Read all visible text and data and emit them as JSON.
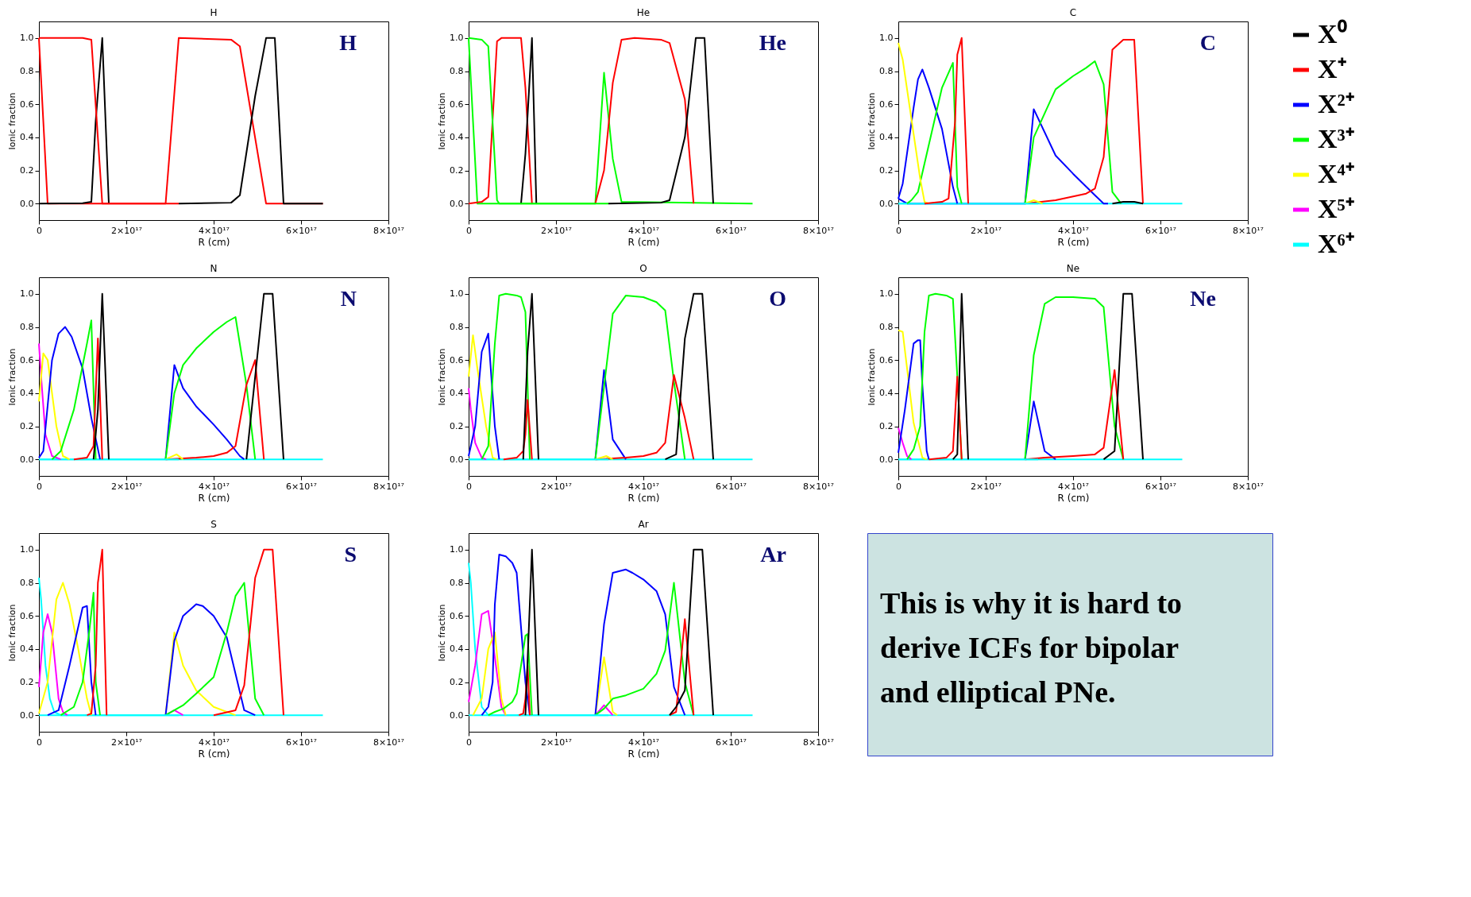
{
  "chart_data": [
    {
      "type": "line",
      "title": "H",
      "annotations": [
        "H"
      ],
      "legend": "right",
      "xlabel": "R (cm)",
      "ylabel": "Ionic fraction",
      "xlim": [
        0,
        8e+17
      ],
      "xticks": [
        {
          "value": 0,
          "label": "0"
        },
        {
          "value": 2e+17,
          "label": "2×10¹⁷"
        },
        {
          "value": 4e+17,
          "label": "4×10¹⁷"
        },
        {
          "value": 6e+17,
          "label": "6×10¹⁷"
        },
        {
          "value": 8e+17,
          "label": "8×10¹⁷"
        }
      ],
      "ylim": [
        -0.1,
        1.1
      ],
      "yticks": [
        {
          "value": 0,
          "label": "0.0"
        },
        {
          "value": 0.2,
          "label": "0.2"
        },
        {
          "value": 0.4,
          "label": "0.4"
        },
        {
          "value": 0.6,
          "label": "0.6"
        },
        {
          "value": 0.8,
          "label": "0.8"
        },
        {
          "value": 1,
          "label": "1.0"
        }
      ],
      "series": [
        {
          "color": "#ff0000",
          "x": [
            0,
            2e+16,
            2.9e+17,
            3.2e+17,
            4.4e+17,
            4.6e+17,
            5.2e+17,
            6.5e+17
          ],
          "values": [
            1,
            0,
            0,
            1,
            0.99,
            0.95,
            0,
            0
          ]
        },
        {
          "color": "#000000",
          "x": [
            3.2e+17,
            4.4e+17,
            4.6e+17,
            4.95e+17,
            5.2e+17,
            5.4e+17,
            5.6e+17,
            6.5e+17
          ],
          "values": [
            0,
            0.005,
            0.05,
            0.65,
            1,
            1,
            0,
            0
          ]
        },
        {
          "name": "X⁰",
          "color": "#000000",
          "x": [
            0,
            1e+17,
            1.2e+17,
            1.3e+17,
            1.45e+17,
            1.6e+17
          ],
          "values": [
            0,
            0.002,
            0.01,
            0.5,
            1,
            0
          ]
        },
        {
          "name": "X⁺",
          "color": "#ff0000",
          "x": [
            0,
            1e+17,
            1.2e+17,
            1.45e+17,
            3.2e+17
          ],
          "values": [
            1,
            1,
            0.99,
            0,
            0
          ]
        }
      ]
    },
    {
      "type": "line",
      "title": "He",
      "annotations": [
        "He"
      ],
      "xlabel": "R (cm)",
      "ylabel": "Ionic fraction",
      "xlim": [
        0,
        8e+17
      ],
      "xticks": [
        {
          "value": 0,
          "label": "0"
        },
        {
          "value": 2e+17,
          "label": "2×10¹⁷"
        },
        {
          "value": 4e+17,
          "label": "4×10¹⁷"
        },
        {
          "value": 6e+17,
          "label": "6×10¹⁷"
        },
        {
          "value": 8e+17,
          "label": "8×10¹⁷"
        }
      ],
      "ylim": [
        -0.1,
        1.1
      ],
      "yticks": [
        {
          "value": 0,
          "label": "0.0"
        },
        {
          "value": 0.2,
          "label": "0.2"
        },
        {
          "value": 0.4,
          "label": "0.4"
        },
        {
          "value": 0.6,
          "label": "0.6"
        },
        {
          "value": 0.8,
          "label": "0.8"
        },
        {
          "value": 1,
          "label": "1.0"
        }
      ],
      "series": [
        {
          "color": "#00ff00",
          "x": [
            0,
            2e+16,
            2.9e+17,
            3.1e+17,
            3.3e+17,
            3.5e+17,
            6.5e+17
          ],
          "values": [
            1,
            0,
            0,
            0.79,
            0.27,
            0.01,
            0
          ]
        },
        {
          "color": "#ff0000",
          "x": [
            2.9e+17,
            3.1e+17,
            3.3e+17,
            3.5e+17,
            3.8e+17,
            4.4e+17,
            4.6e+17,
            4.95e+17,
            5.15e+17
          ],
          "values": [
            0,
            0.2,
            0.73,
            0.99,
            1,
            0.99,
            0.97,
            0.63,
            0
          ]
        },
        {
          "color": "#000000",
          "x": [
            3.2e+17,
            4.4e+17,
            4.6e+17,
            4.95e+17,
            5.2e+17,
            5.4e+17,
            5.6e+17
          ],
          "values": [
            0,
            0.005,
            0.02,
            0.4,
            1,
            1,
            0
          ]
        },
        {
          "color": "#ff0000",
          "x": [
            0,
            3e+16,
            4.5e+16,
            6.5e+16,
            7.5e+16,
            1.2e+17,
            1.3e+17,
            1.45e+17
          ],
          "values": [
            0,
            0.01,
            0.04,
            0.98,
            1,
            1,
            0.7,
            0
          ]
        },
        {
          "color": "#000000",
          "x": [
            1.2e+17,
            1.3e+17,
            1.45e+17,
            1.55e+17
          ],
          "values": [
            0,
            0.3,
            1,
            0
          ]
        },
        {
          "color": "#00ff00",
          "x": [
            0,
            3e+16,
            4.5e+16,
            6.5e+16,
            7e+16,
            3.2e+17
          ],
          "values": [
            1,
            0.99,
            0.95,
            0.02,
            0,
            0
          ]
        }
      ]
    },
    {
      "type": "line",
      "title": "C",
      "annotations": [
        "C"
      ],
      "legend": "right",
      "xlabel": "R (cm)",
      "ylabel": "Ionic fraction",
      "xlim": [
        0,
        8e+17
      ],
      "xticks": [
        {
          "value": 0,
          "label": "0"
        },
        {
          "value": 2e+17,
          "label": "2×10¹⁷"
        },
        {
          "value": 4e+17,
          "label": "4×10¹⁷"
        },
        {
          "value": 6e+17,
          "label": "6×10¹⁷"
        },
        {
          "value": 8e+17,
          "label": "8×10¹⁷"
        }
      ],
      "ylim": [
        -0.1,
        1.1
      ],
      "yticks": [
        {
          "value": 0,
          "label": "0.0"
        },
        {
          "value": 0.2,
          "label": "0.2"
        },
        {
          "value": 0.4,
          "label": "0.4"
        },
        {
          "value": 0.6,
          "label": "0.6"
        },
        {
          "value": 0.8,
          "label": "0.8"
        },
        {
          "value": 1,
          "label": "1.0"
        }
      ],
      "series": [
        {
          "color": "#00ffff",
          "x": [
            0,
            6.5e+17
          ],
          "values": [
            0,
            0
          ]
        },
        {
          "color": "#0000ff",
          "x": [
            0,
            2e+16,
            2.9e+17,
            3.1e+17,
            3.6e+17,
            4e+17,
            4.5e+17,
            4.7e+17,
            4.8e+17
          ],
          "values": [
            0.03,
            0,
            0,
            0.57,
            0.29,
            0.18,
            0.05,
            0,
            0
          ]
        },
        {
          "color": "#00ff00",
          "x": [
            2.9e+17,
            3.1e+17,
            3.6e+17,
            4e+17,
            4.3e+17,
            4.5e+17,
            4.7e+17,
            4.9e+17,
            5.1e+17
          ],
          "values": [
            0,
            0.4,
            0.69,
            0.77,
            0.82,
            0.86,
            0.72,
            0.07,
            0
          ]
        },
        {
          "color": "#ff0000",
          "x": [
            2.9e+17,
            3.6e+17,
            4.3e+17,
            4.5e+17,
            4.7e+17,
            4.9e+17,
            5.15e+17,
            5.4e+17,
            5.6e+17
          ],
          "values": [
            0,
            0.02,
            0.06,
            0.09,
            0.28,
            0.93,
            0.99,
            0.99,
            0
          ]
        },
        {
          "color": "#ffff00",
          "x": [
            2.9e+17,
            3.1e+17,
            3.3e+17
          ],
          "values": [
            0,
            0.02,
            0
          ]
        },
        {
          "color": "#000000",
          "x": [
            4.9e+17,
            5.15e+17,
            5.4e+17,
            5.6e+17
          ],
          "values": [
            0,
            0.01,
            0.01,
            0
          ]
        },
        {
          "color": "#00ffff",
          "x": [
            0,
            3.2e+17
          ],
          "values": [
            0,
            0
          ]
        },
        {
          "name": "X²⁺",
          "color": "#0000ff",
          "x": [
            0,
            1e+16,
            3.5e+16,
            4.5e+16,
            5.5e+16,
            7e+16,
            1e+17,
            1.25e+17,
            1.35e+17
          ],
          "values": [
            0.03,
            0.12,
            0.58,
            0.75,
            0.81,
            0.7,
            0.45,
            0.1,
            0
          ]
        },
        {
          "name": "X³⁺",
          "color": "#00ff00",
          "x": [
            2e+16,
            3e+16,
            4.5e+16,
            1e+17,
            1.25e+17,
            1.35e+17,
            1.45e+17
          ],
          "values": [
            0,
            0.02,
            0.07,
            0.7,
            0.85,
            0.1,
            0
          ]
        },
        {
          "name": "X⁴⁺",
          "color": "#ffff00",
          "x": [
            0,
            1e+16,
            5e+16,
            6e+16,
            7e+16
          ],
          "values": [
            0.97,
            0.87,
            0.15,
            0.01,
            0
          ]
        },
        {
          "color": "#ff0000",
          "x": [
            6e+16,
            1e+17,
            1.15e+17,
            1.3e+17,
            1.35e+17,
            1.45e+17,
            1.6e+17
          ],
          "values": [
            0,
            0.01,
            0.03,
            0.5,
            0.9,
            1,
            0
          ]
        }
      ]
    },
    {
      "type": "line",
      "title": "N",
      "annotations": [
        "N"
      ],
      "legend": "right",
      "xlabel": "R (cm)",
      "ylabel": "Ionic fraction",
      "xlim": [
        0,
        8e+17
      ],
      "xticks": [
        {
          "value": 0,
          "label": "0"
        },
        {
          "value": 2e+17,
          "label": "2×10¹⁷"
        },
        {
          "value": 4e+17,
          "label": "4×10¹⁷"
        },
        {
          "value": 6e+17,
          "label": "6×10¹⁷"
        },
        {
          "value": 8e+17,
          "label": "8×10¹⁷"
        }
      ],
      "ylim": [
        -0.1,
        1.1
      ],
      "yticks": [
        {
          "value": 0,
          "label": "0.0"
        },
        {
          "value": 0.2,
          "label": "0.2"
        },
        {
          "value": 0.4,
          "label": "0.4"
        },
        {
          "value": 0.6,
          "label": "0.6"
        },
        {
          "value": 0.8,
          "label": "0.8"
        },
        {
          "value": 1,
          "label": "1.0"
        }
      ],
      "series": [
        {
          "color": "#00ffff",
          "x": [
            0,
            6.5e+17
          ],
          "values": [
            0,
            0
          ]
        },
        {
          "color": "#0000ff",
          "x": [
            2.9e+17,
            3.1e+17,
            3.3e+17,
            3.6e+17,
            4e+17,
            4.3e+17,
            4.6e+17,
            4.7e+17
          ],
          "values": [
            0,
            0.57,
            0.43,
            0.32,
            0.21,
            0.12,
            0.02,
            0
          ]
        },
        {
          "color": "#00ff00",
          "x": [
            2.9e+17,
            3.1e+17,
            3.3e+17,
            3.6e+17,
            4e+17,
            4.3e+17,
            4.5e+17,
            4.75e+17,
            4.95e+17
          ],
          "values": [
            0,
            0.4,
            0.57,
            0.67,
            0.77,
            0.83,
            0.86,
            0.45,
            0
          ]
        },
        {
          "color": "#ff0000",
          "x": [
            2.9e+17,
            3.6e+17,
            4e+17,
            4.3e+17,
            4.5e+17,
            4.75e+17,
            4.95e+17,
            5.15e+17
          ],
          "values": [
            0,
            0.01,
            0.02,
            0.04,
            0.08,
            0.45,
            0.6,
            0
          ]
        },
        {
          "color": "#ffff00",
          "x": [
            2.9e+17,
            3.15e+17,
            3.3e+17
          ],
          "values": [
            0,
            0.03,
            0
          ]
        },
        {
          "color": "#000000",
          "x": [
            4.75e+17,
            5.15e+17,
            5.35e+17,
            5.6e+17
          ],
          "values": [
            0,
            1,
            1,
            0
          ]
        },
        {
          "color": "#00ffff",
          "x": [
            0,
            3.2e+17
          ],
          "values": [
            0,
            0
          ]
        },
        {
          "name": "X⁵⁺",
          "color": "#ff00ff",
          "x": [
            0,
            5000000000000000.0,
            1.5e+16,
            3e+16,
            5e+16
          ],
          "values": [
            0.7,
            0.5,
            0.15,
            0.02,
            0
          ]
        },
        {
          "color": "#ffff00",
          "x": [
            0,
            1e+16,
            2e+16,
            4e+16,
            5.5e+16,
            7e+16
          ],
          "values": [
            0.35,
            0.64,
            0.6,
            0.2,
            0.02,
            0
          ]
        },
        {
          "color": "#0000ff",
          "x": [
            0,
            1e+16,
            3e+16,
            4.5e+16,
            6e+16,
            7.5e+16,
            1e+17,
            1.2e+17,
            1.4e+17
          ],
          "values": [
            0.01,
            0.05,
            0.6,
            0.76,
            0.8,
            0.74,
            0.55,
            0.25,
            0
          ]
        },
        {
          "color": "#00ff00",
          "x": [
            3e+16,
            5e+16,
            8e+16,
            1.1e+17,
            1.2e+17,
            1.3e+17
          ],
          "values": [
            0,
            0.05,
            0.3,
            0.7,
            0.84,
            0
          ]
        },
        {
          "color": "#ff0000",
          "x": [
            8e+16,
            1.1e+17,
            1.25e+17,
            1.35e+17,
            1.45e+17
          ],
          "values": [
            0,
            0.01,
            0.08,
            0.73,
            0
          ]
        },
        {
          "color": "#000000",
          "x": [
            1.25e+17,
            1.35e+17,
            1.45e+17,
            1.6e+17
          ],
          "values": [
            0,
            0.3,
            1,
            0
          ]
        }
      ]
    },
    {
      "type": "line",
      "title": "O",
      "annotations": [
        "O"
      ],
      "xlabel": "R (cm)",
      "ylabel": "Ionic fraction",
      "xlim": [
        0,
        8e+17
      ],
      "xticks": [
        {
          "value": 0,
          "label": "0"
        },
        {
          "value": 2e+17,
          "label": "2×10¹⁷"
        },
        {
          "value": 4e+17,
          "label": "4×10¹⁷"
        },
        {
          "value": 6e+17,
          "label": "6×10¹⁷"
        },
        {
          "value": 8e+17,
          "label": "8×10¹⁷"
        }
      ],
      "ylim": [
        -0.1,
        1.1
      ],
      "yticks": [
        {
          "value": 0,
          "label": "0.0"
        },
        {
          "value": 0.2,
          "label": "0.2"
        },
        {
          "value": 0.4,
          "label": "0.4"
        },
        {
          "value": 0.6,
          "label": "0.6"
        },
        {
          "value": 0.8,
          "label": "0.8"
        },
        {
          "value": 1,
          "label": "1.0"
        }
      ],
      "series": [
        {
          "color": "#00ffff",
          "x": [
            0,
            6.5e+17
          ],
          "values": [
            0,
            0
          ]
        },
        {
          "color": "#0000ff",
          "x": [
            2.9e+17,
            3.1e+17,
            3.3e+17,
            3.6e+17
          ],
          "values": [
            0,
            0.54,
            0.12,
            0
          ]
        },
        {
          "color": "#00ff00",
          "x": [
            2.9e+17,
            3.3e+17,
            3.6e+17,
            4e+17,
            4.3e+17,
            4.5e+17,
            4.7e+17,
            4.95e+17
          ],
          "values": [
            0,
            0.88,
            0.99,
            0.98,
            0.95,
            0.9,
            0.47,
            0
          ]
        },
        {
          "color": "#ff0000",
          "x": [
            2.9e+17,
            3.6e+17,
            4e+17,
            4.3e+17,
            4.5e+17,
            4.7e+17,
            4.95e+17,
            5.15e+17
          ],
          "values": [
            0,
            0.01,
            0.02,
            0.04,
            0.1,
            0.51,
            0.25,
            0
          ]
        },
        {
          "color": "#ffff00",
          "x": [
            2.9e+17,
            3.15e+17,
            3.3e+17
          ],
          "values": [
            0,
            0.02,
            0
          ]
        },
        {
          "color": "#000000",
          "x": [
            4.5e+17,
            4.75e+17,
            4.95e+17,
            5.15e+17,
            5.35e+17,
            5.6e+17
          ],
          "values": [
            0,
            0.03,
            0.73,
            1,
            1,
            0
          ]
        },
        {
          "color": "#00ffff",
          "x": [
            0,
            3.2e+17
          ],
          "values": [
            0,
            0
          ]
        },
        {
          "color": "#ff00ff",
          "x": [
            0,
            5000000000000000.0,
            1.5e+16,
            3e+16,
            4e+16
          ],
          "values": [
            0.43,
            0.3,
            0.1,
            0.01,
            0
          ]
        },
        {
          "color": "#ffff00",
          "x": [
            0,
            1e+16,
            2e+16,
            4e+16,
            5.5e+16,
            6.5e+16
          ],
          "values": [
            0.5,
            0.75,
            0.55,
            0.2,
            0.01,
            0
          ]
        },
        {
          "color": "#0000ff",
          "x": [
            0,
            1.5e+16,
            3e+16,
            4.5e+16,
            6e+16,
            7e+16
          ],
          "values": [
            0.02,
            0.2,
            0.65,
            0.76,
            0.2,
            0
          ]
        },
        {
          "color": "#00ff00",
          "x": [
            3e+16,
            4.5e+16,
            6e+16,
            7e+16,
            8.5e+16,
            1.1e+17,
            1.2e+17,
            1.3e+17,
            1.4e+17
          ],
          "values": [
            0,
            0.08,
            0.7,
            0.99,
            1,
            0.99,
            0.98,
            0.89,
            0
          ]
        },
        {
          "color": "#ff0000",
          "x": [
            8e+16,
            1.1e+17,
            1.25e+17,
            1.3e+17,
            1.35e+17,
            1.45e+17
          ],
          "values": [
            0,
            0.01,
            0.05,
            0.15,
            0.36,
            0
          ]
        },
        {
          "color": "#000000",
          "x": [
            1.25e+17,
            1.35e+17,
            1.45e+17,
            1.6e+17
          ],
          "values": [
            0,
            0.65,
            1,
            0
          ]
        }
      ]
    },
    {
      "type": "line",
      "title": "Ne",
      "annotations": [
        "Ne"
      ],
      "xlabel": "R (cm)",
      "ylabel": "Ionic fraction",
      "xlim": [
        0,
        8e+17
      ],
      "xticks": [
        {
          "value": 0,
          "label": "0"
        },
        {
          "value": 2e+17,
          "label": "2×10¹⁷"
        },
        {
          "value": 4e+17,
          "label": "4×10¹⁷"
        },
        {
          "value": 6e+17,
          "label": "6×10¹⁷"
        },
        {
          "value": 8e+17,
          "label": "8×10¹⁷"
        }
      ],
      "ylim": [
        -0.1,
        1.1
      ],
      "yticks": [
        {
          "value": 0,
          "label": "0.0"
        },
        {
          "value": 0.2,
          "label": "0.2"
        },
        {
          "value": 0.4,
          "label": "0.4"
        },
        {
          "value": 0.6,
          "label": "0.6"
        },
        {
          "value": 0.8,
          "label": "0.8"
        },
        {
          "value": 1,
          "label": "1.0"
        }
      ],
      "series": [
        {
          "color": "#00ffff",
          "x": [
            0,
            6.5e+17
          ],
          "values": [
            0,
            0
          ]
        },
        {
          "color": "#0000ff",
          "x": [
            2.9e+17,
            3.1e+17,
            3.35e+17,
            3.6e+17
          ],
          "values": [
            0,
            0.35,
            0.05,
            0
          ]
        },
        {
          "color": "#00ff00",
          "x": [
            2.9e+17,
            3.1e+17,
            3.35e+17,
            3.6e+17,
            4e+17,
            4.5e+17,
            4.7e+17,
            4.95e+17,
            5.15e+17
          ],
          "values": [
            0,
            0.63,
            0.94,
            0.98,
            0.98,
            0.97,
            0.92,
            0.2,
            0
          ]
        },
        {
          "color": "#ff0000",
          "x": [
            2.9e+17,
            3.35e+17,
            4e+17,
            4.5e+17,
            4.7e+17,
            4.95e+17,
            5.15e+17
          ],
          "values": [
            0,
            0.01,
            0.02,
            0.03,
            0.07,
            0.54,
            0
          ]
        },
        {
          "color": "#000000",
          "x": [
            4.7e+17,
            4.95e+17,
            5.15e+17,
            5.35e+17,
            5.6e+17
          ],
          "values": [
            0,
            0.05,
            1,
            1,
            0
          ]
        },
        {
          "color": "#00ffff",
          "x": [
            0,
            3.2e+17
          ],
          "values": [
            0,
            0
          ]
        },
        {
          "color": "#ff00ff",
          "x": [
            0,
            1e+16,
            2e+16,
            3e+16
          ],
          "values": [
            0.19,
            0.1,
            0.02,
            0
          ]
        },
        {
          "color": "#ffff00",
          "x": [
            0,
            1e+16,
            2e+16,
            3.5e+16,
            5.5e+16,
            6.5e+16
          ],
          "values": [
            0.78,
            0.77,
            0.55,
            0.22,
            0.01,
            0
          ]
        },
        {
          "color": "#0000ff",
          "x": [
            0,
            1.5e+16,
            3.5e+16,
            4.5e+16,
            5e+16,
            5.5e+16,
            6.5e+16,
            7e+16
          ],
          "values": [
            0.04,
            0.3,
            0.7,
            0.72,
            0.72,
            0.45,
            0.05,
            0
          ]
        },
        {
          "color": "#00ff00",
          "x": [
            2e+16,
            3.5e+16,
            5e+16,
            6e+16,
            7e+16,
            8.5e+16,
            1.1e+17,
            1.25e+17,
            1.35e+17,
            1.45e+17
          ],
          "values": [
            0,
            0.06,
            0.2,
            0.77,
            0.99,
            1,
            0.99,
            0.97,
            0.5,
            0
          ]
        },
        {
          "color": "#ff0000",
          "x": [
            7e+16,
            1.1e+17,
            1.25e+17,
            1.35e+17,
            1.45e+17
          ],
          "values": [
            0,
            0.01,
            0.05,
            0.5,
            0
          ]
        },
        {
          "color": "#000000",
          "x": [
            1.25e+17,
            1.35e+17,
            1.45e+17,
            1.6e+17
          ],
          "values": [
            0,
            0.03,
            1,
            0
          ]
        }
      ]
    },
    {
      "type": "line",
      "title": "S",
      "annotations": [
        "S"
      ],
      "legend": "right",
      "xlabel": "R (cm)",
      "ylabel": "Ionic fraction",
      "xlim": [
        0,
        8e+17
      ],
      "xticks": [
        {
          "value": 0,
          "label": "0"
        },
        {
          "value": 2e+17,
          "label": "2×10¹⁷"
        },
        {
          "value": 4e+17,
          "label": "4×10¹⁷"
        },
        {
          "value": 6e+17,
          "label": "6×10¹⁷"
        },
        {
          "value": 8e+17,
          "label": "8×10¹⁷"
        }
      ],
      "ylim": [
        -0.1,
        1.1
      ],
      "yticks": [
        {
          "value": 0,
          "label": "0.0"
        },
        {
          "value": 0.2,
          "label": "0.2"
        },
        {
          "value": 0.4,
          "label": "0.4"
        },
        {
          "value": 0.6,
          "label": "0.6"
        },
        {
          "value": 0.8,
          "label": "0.8"
        },
        {
          "value": 1,
          "label": "1.0"
        }
      ],
      "series": [
        {
          "color": "#00ffff",
          "x": [
            0,
            6.5e+17
          ],
          "values": [
            0,
            0
          ]
        },
        {
          "color": "#ffff00",
          "x": [
            2.9e+17,
            3.1e+17,
            3.3e+17,
            3.6e+17,
            4e+17,
            4.5e+17
          ],
          "values": [
            0,
            0.5,
            0.3,
            0.15,
            0.05,
            0
          ]
        },
        {
          "color": "#ff00ff",
          "x": [
            2.9e+17,
            3.1e+17,
            3.3e+17
          ],
          "values": [
            0,
            0.03,
            0
          ]
        },
        {
          "color": "#0000ff",
          "x": [
            2.9e+17,
            3.1e+17,
            3.3e+17,
            3.6e+17,
            3.75e+17,
            4e+17,
            4.3e+17,
            4.5e+17,
            4.7e+17,
            4.95e+17
          ],
          "values": [
            0,
            0.45,
            0.6,
            0.67,
            0.66,
            0.6,
            0.47,
            0.25,
            0.03,
            0
          ]
        },
        {
          "color": "#00ff00",
          "x": [
            2.9e+17,
            3.3e+17,
            3.6e+17,
            4e+17,
            4.3e+17,
            4.5e+17,
            4.7e+17,
            4.95e+17,
            5.15e+17
          ],
          "values": [
            0,
            0.06,
            0.13,
            0.23,
            0.5,
            0.72,
            0.8,
            0.1,
            0
          ]
        },
        {
          "color": "#ff0000",
          "x": [
            4e+17,
            4.5e+17,
            4.7e+17,
            4.95e+17,
            5.15e+17,
            5.35e+17,
            5.6e+17
          ],
          "values": [
            0,
            0.03,
            0.18,
            0.83,
            1,
            1,
            0
          ]
        },
        {
          "name": "X⁶⁺",
          "color": "#00ffff",
          "x": [
            0,
            5000000000000000.0,
            1.5e+16,
            2.5e+16,
            3.5e+16,
            5e+16,
            3.2e+17
          ],
          "values": [
            0.83,
            0.7,
            0.3,
            0.1,
            0.02,
            0,
            0
          ]
        },
        {
          "color": "#ff00ff",
          "x": [
            0,
            1e+16,
            2e+16,
            3e+16,
            4.5e+16,
            5.5e+16,
            6.5e+16
          ],
          "values": [
            0.17,
            0.5,
            0.61,
            0.5,
            0.1,
            0.02,
            0
          ]
        },
        {
          "color": "#ffff00",
          "x": [
            0,
            2e+16,
            4e+16,
            5.5e+16,
            7e+16,
            9e+16,
            1.1e+17,
            1.2e+17
          ],
          "values": [
            0.01,
            0.2,
            0.7,
            0.8,
            0.67,
            0.4,
            0.1,
            0
          ]
        },
        {
          "color": "#0000ff",
          "x": [
            2e+16,
            4.5e+16,
            7e+16,
            1e+17,
            1.1e+17,
            1.2e+17,
            1.3e+17
          ],
          "values": [
            0,
            0.03,
            0.3,
            0.65,
            0.66,
            0.2,
            0
          ]
        },
        {
          "color": "#00ff00",
          "x": [
            5e+16,
            8e+16,
            1e+17,
            1.15e+17,
            1.25e+17,
            1.3e+17,
            1.4e+17
          ],
          "values": [
            0,
            0.05,
            0.2,
            0.5,
            0.74,
            0.2,
            0
          ]
        },
        {
          "color": "#ff0000",
          "x": [
            1.1e+17,
            1.2e+17,
            1.3e+17,
            1.35e+17,
            1.45e+17,
            1.55e+17
          ],
          "values": [
            0,
            0.01,
            0.3,
            0.8,
            1,
            0
          ]
        }
      ]
    },
    {
      "type": "line",
      "title": "Ar",
      "annotations": [
        "Ar"
      ],
      "xlabel": "R (cm)",
      "ylabel": "Ionic fraction",
      "xlim": [
        0,
        8e+17
      ],
      "xticks": [
        {
          "value": 0,
          "label": "0"
        },
        {
          "value": 2e+17,
          "label": "2×10¹⁷"
        },
        {
          "value": 4e+17,
          "label": "4×10¹⁷"
        },
        {
          "value": 6e+17,
          "label": "6×10¹⁷"
        },
        {
          "value": 8e+17,
          "label": "8×10¹⁷"
        }
      ],
      "ylim": [
        -0.1,
        1.1
      ],
      "yticks": [
        {
          "value": 0,
          "label": "0.0"
        },
        {
          "value": 0.2,
          "label": "0.2"
        },
        {
          "value": 0.4,
          "label": "0.4"
        },
        {
          "value": 0.6,
          "label": "0.6"
        },
        {
          "value": 0.8,
          "label": "0.8"
        },
        {
          "value": 1,
          "label": "1.0"
        }
      ],
      "series": [
        {
          "color": "#00ffff",
          "x": [
            0,
            6.5e+17
          ],
          "values": [
            0,
            0
          ]
        },
        {
          "color": "#ffff00",
          "x": [
            2.9e+17,
            3.1e+17,
            3.3e+17,
            3.4e+17
          ],
          "values": [
            0,
            0.35,
            0.02,
            0
          ]
        },
        {
          "color": "#ff00ff",
          "x": [
            2.9e+17,
            3.1e+17,
            3.3e+17
          ],
          "values": [
            0,
            0.06,
            0
          ]
        },
        {
          "color": "#0000ff",
          "x": [
            2.9e+17,
            3.1e+17,
            3.3e+17,
            3.6e+17,
            3.75e+17,
            4e+17,
            4.3e+17,
            4.5e+17,
            4.7e+17,
            4.95e+17
          ],
          "values": [
            0,
            0.55,
            0.86,
            0.88,
            0.86,
            0.82,
            0.75,
            0.61,
            0.17,
            0
          ]
        },
        {
          "color": "#00ff00",
          "x": [
            2.9e+17,
            3.1e+17,
            3.3e+17,
            3.6e+17,
            4e+17,
            4.3e+17,
            4.5e+17,
            4.7e+17,
            4.95e+17,
            5.15e+17
          ],
          "values": [
            0,
            0.04,
            0.1,
            0.12,
            0.16,
            0.25,
            0.39,
            0.8,
            0.2,
            0
          ]
        },
        {
          "color": "#ff0000",
          "x": [
            4.6e+17,
            4.75e+17,
            4.95e+17,
            5.15e+17
          ],
          "values": [
            0,
            0.02,
            0.58,
            0
          ]
        },
        {
          "color": "#000000",
          "x": [
            4.6e+17,
            4.75e+17,
            4.95e+17,
            5.15e+17,
            5.35e+17,
            5.6e+17
          ],
          "values": [
            0,
            0.05,
            0.15,
            1,
            1,
            0
          ]
        },
        {
          "color": "#00ffff",
          "x": [
            0,
            5000000000000000.0,
            1.5e+16,
            3e+16,
            4.5e+16,
            3.2e+17
          ],
          "values": [
            0.92,
            0.8,
            0.4,
            0.05,
            0,
            0
          ]
        },
        {
          "color": "#ff00ff",
          "x": [
            0,
            1.5e+16,
            3e+16,
            4.5e+16,
            6e+16,
            7.5e+16,
            8.5e+16
          ],
          "values": [
            0.08,
            0.3,
            0.61,
            0.63,
            0.35,
            0.05,
            0
          ]
        },
        {
          "color": "#ffff00",
          "x": [
            1e+16,
            3e+16,
            4.5e+16,
            6e+16,
            7.5e+16,
            8.5e+16
          ],
          "values": [
            0,
            0.1,
            0.4,
            0.5,
            0.1,
            0
          ]
        },
        {
          "color": "#0000ff",
          "x": [
            3e+16,
            4.5e+16,
            5.5e+16,
            6e+16,
            7e+16,
            8.5e+16,
            1e+17,
            1.1e+17,
            1.3e+17,
            1.4e+17
          ],
          "values": [
            0,
            0.05,
            0.2,
            0.67,
            0.97,
            0.96,
            0.92,
            0.86,
            0.2,
            0
          ]
        },
        {
          "color": "#00ff00",
          "x": [
            4.5e+16,
            6e+16,
            8e+16,
            1e+17,
            1.1e+17,
            1.2e+17,
            1.3e+17,
            1.35e+17,
            1.45e+17
          ],
          "values": [
            0,
            0.02,
            0.04,
            0.08,
            0.13,
            0.3,
            0.48,
            0.49,
            0
          ]
        },
        {
          "color": "#ff0000",
          "x": [
            1.15e+17,
            1.25e+17,
            1.3e+17,
            1.35e+17,
            1.4e+17
          ],
          "values": [
            0,
            0.01,
            0.1,
            0.3,
            0
          ]
        },
        {
          "color": "#000000",
          "x": [
            1.3e+17,
            1.45e+17,
            1.6e+17
          ],
          "values": [
            0,
            1,
            0
          ]
        }
      ]
    },
    {
      "type": "other",
      "annotations": [
        "This is why it is hard to derive ICFs for bipolar and elliptical PNe."
      ]
    }
  ]
}
